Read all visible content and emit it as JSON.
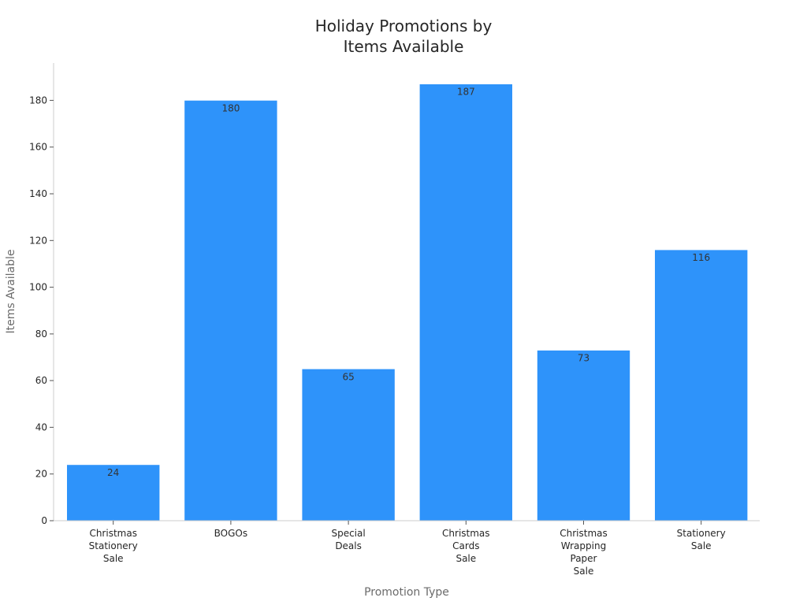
{
  "chart_data": {
    "type": "bar",
    "title": "Holiday Promotions by Items Available",
    "title_lines": [
      "Holiday Promotions by",
      "Items Available"
    ],
    "xlabel": "Promotion Type",
    "ylabel": "Items Available",
    "categories": [
      "Christmas Stationery Sale",
      "BOGOs",
      "Special Deals",
      "Christmas Cards Sale",
      "Christmas Wrapping Paper Sale",
      "Stationery Sale"
    ],
    "category_lines": [
      [
        "Christmas",
        "Stationery",
        "Sale"
      ],
      [
        "BOGOs"
      ],
      [
        "Special",
        "Deals"
      ],
      [
        "Christmas",
        "Cards",
        "Sale"
      ],
      [
        "Christmas",
        "Wrapping",
        "Paper",
        "Sale"
      ],
      [
        "Stationery",
        "Sale"
      ]
    ],
    "values": [
      24,
      180,
      65,
      187,
      73,
      116
    ],
    "ylim": [
      0,
      196
    ],
    "yticks": [
      0,
      20,
      40,
      60,
      80,
      100,
      120,
      140,
      160,
      180
    ],
    "bar_color": "#2E93FA",
    "grid": false,
    "legend": "none",
    "data_labels": true
  }
}
